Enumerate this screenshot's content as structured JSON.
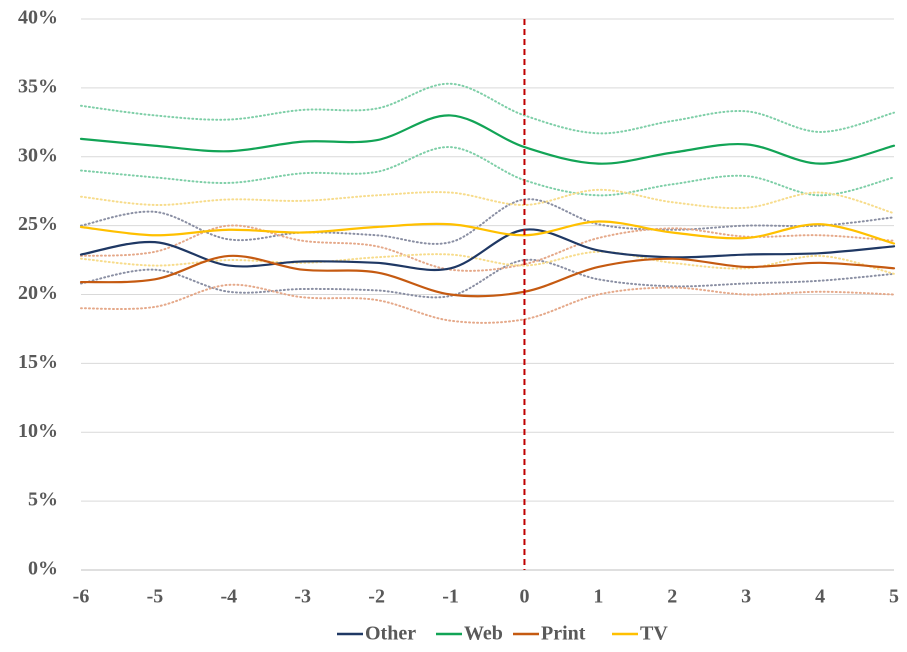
{
  "chart_data": {
    "type": "line",
    "x": [
      -6,
      -5,
      -4,
      -3,
      -2,
      -1,
      0,
      1,
      2,
      3,
      4,
      5
    ],
    "xlim": [
      -6,
      5
    ],
    "xticks": [
      -6,
      -5,
      -4,
      -3,
      -2,
      -1,
      0,
      1,
      2,
      3,
      4,
      5
    ],
    "ylim": [
      0,
      40
    ],
    "yticks": [
      {
        "value": 0,
        "label": "0%"
      },
      {
        "value": 5,
        "label": "5%"
      },
      {
        "value": 10,
        "label": "10%"
      },
      {
        "value": 15,
        "label": "15%"
      },
      {
        "value": 20,
        "label": "20%"
      },
      {
        "value": 25,
        "label": "25%"
      },
      {
        "value": 30,
        "label": "30%"
      },
      {
        "value": 35,
        "label": "35%"
      },
      {
        "value": 40,
        "label": "40%"
      }
    ],
    "grid": true,
    "smooth": true,
    "legend": "bottom",
    "vline": {
      "x": 0,
      "color": "#c00000"
    },
    "series": [
      {
        "name": "Other",
        "color": "#1f3864",
        "band_color": "#8a8fa3",
        "values": [
          22.9,
          23.8,
          22.1,
          22.4,
          22.3,
          21.9,
          24.7,
          23.2,
          22.7,
          22.9,
          23.0,
          23.5
        ],
        "upper": [
          25.0,
          26.0,
          24.0,
          24.5,
          24.3,
          23.8,
          26.9,
          25.1,
          24.7,
          25.0,
          25.0,
          25.6
        ],
        "lower": [
          20.8,
          21.8,
          20.2,
          20.4,
          20.3,
          19.9,
          22.5,
          21.1,
          20.6,
          20.8,
          21.0,
          21.5
        ]
      },
      {
        "name": "Web",
        "color": "#12a456",
        "band_color": "#7fcfa8",
        "values": [
          31.3,
          30.8,
          30.4,
          31.1,
          31.2,
          33.0,
          30.7,
          29.5,
          30.3,
          30.9,
          29.5,
          30.8
        ],
        "upper": [
          33.7,
          33.0,
          32.7,
          33.4,
          33.5,
          35.3,
          33.0,
          31.7,
          32.6,
          33.3,
          31.8,
          33.2
        ],
        "lower": [
          29.0,
          28.5,
          28.1,
          28.8,
          28.9,
          30.7,
          28.3,
          27.2,
          28.0,
          28.6,
          27.2,
          28.5
        ]
      },
      {
        "name": "Print",
        "color": "#c55a11",
        "band_color": "#e5a98a",
        "values": [
          20.9,
          21.1,
          22.8,
          21.8,
          21.6,
          20.0,
          20.2,
          22.0,
          22.6,
          22.0,
          22.3,
          21.9
        ],
        "upper": [
          22.8,
          23.1,
          25.0,
          23.9,
          23.5,
          21.8,
          22.2,
          24.1,
          24.8,
          24.2,
          24.3,
          23.9
        ],
        "lower": [
          19.0,
          19.1,
          20.7,
          19.8,
          19.6,
          18.1,
          18.2,
          20.0,
          20.5,
          20.0,
          20.2,
          20.0
        ]
      },
      {
        "name": "TV",
        "color": "#ffc000",
        "band_color": "#f7dc8c",
        "values": [
          24.9,
          24.3,
          24.7,
          24.5,
          24.9,
          25.1,
          24.3,
          25.3,
          24.5,
          24.1,
          25.1,
          23.7
        ],
        "upper": [
          27.1,
          26.5,
          26.9,
          26.8,
          27.2,
          27.4,
          26.5,
          27.6,
          26.7,
          26.3,
          27.4,
          25.9
        ],
        "lower": [
          22.6,
          22.1,
          22.5,
          22.3,
          22.7,
          22.9,
          22.1,
          23.1,
          22.3,
          21.9,
          22.8,
          21.5
        ]
      }
    ]
  }
}
